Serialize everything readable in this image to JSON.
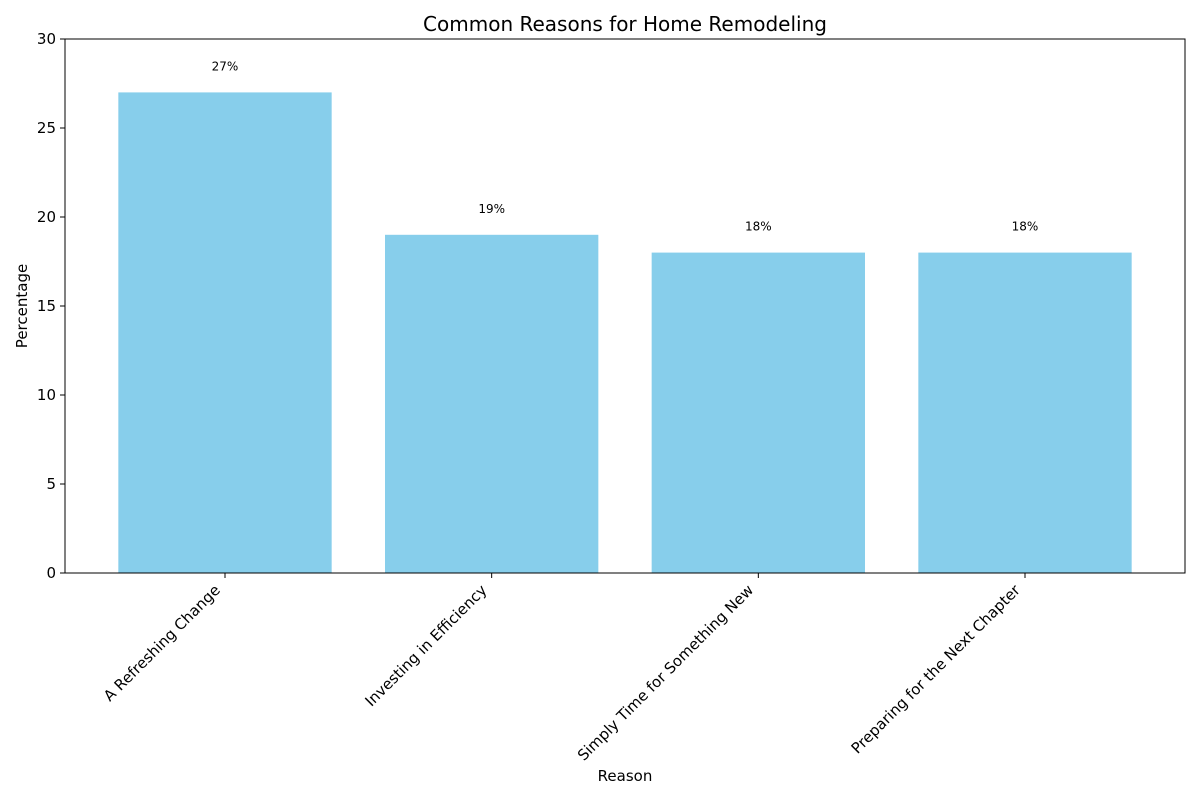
{
  "chart_data": {
    "type": "bar",
    "title": "Common Reasons for Home Remodeling",
    "xlabel": "Reason",
    "ylabel": "Percentage",
    "categories": [
      "A Refreshing Change",
      "Investing in Efficiency",
      "Simply Time for Something New",
      "Preparing for the Next Chapter"
    ],
    "values": [
      27,
      19,
      18,
      18
    ],
    "data_labels": [
      "27%",
      "19%",
      "18%",
      "18%"
    ],
    "ylim": [
      0,
      30
    ],
    "yticks": [
      0,
      5,
      10,
      15,
      20,
      25,
      30
    ],
    "grid": false,
    "legend": "none",
    "bar_color": "#87CEEB"
  }
}
